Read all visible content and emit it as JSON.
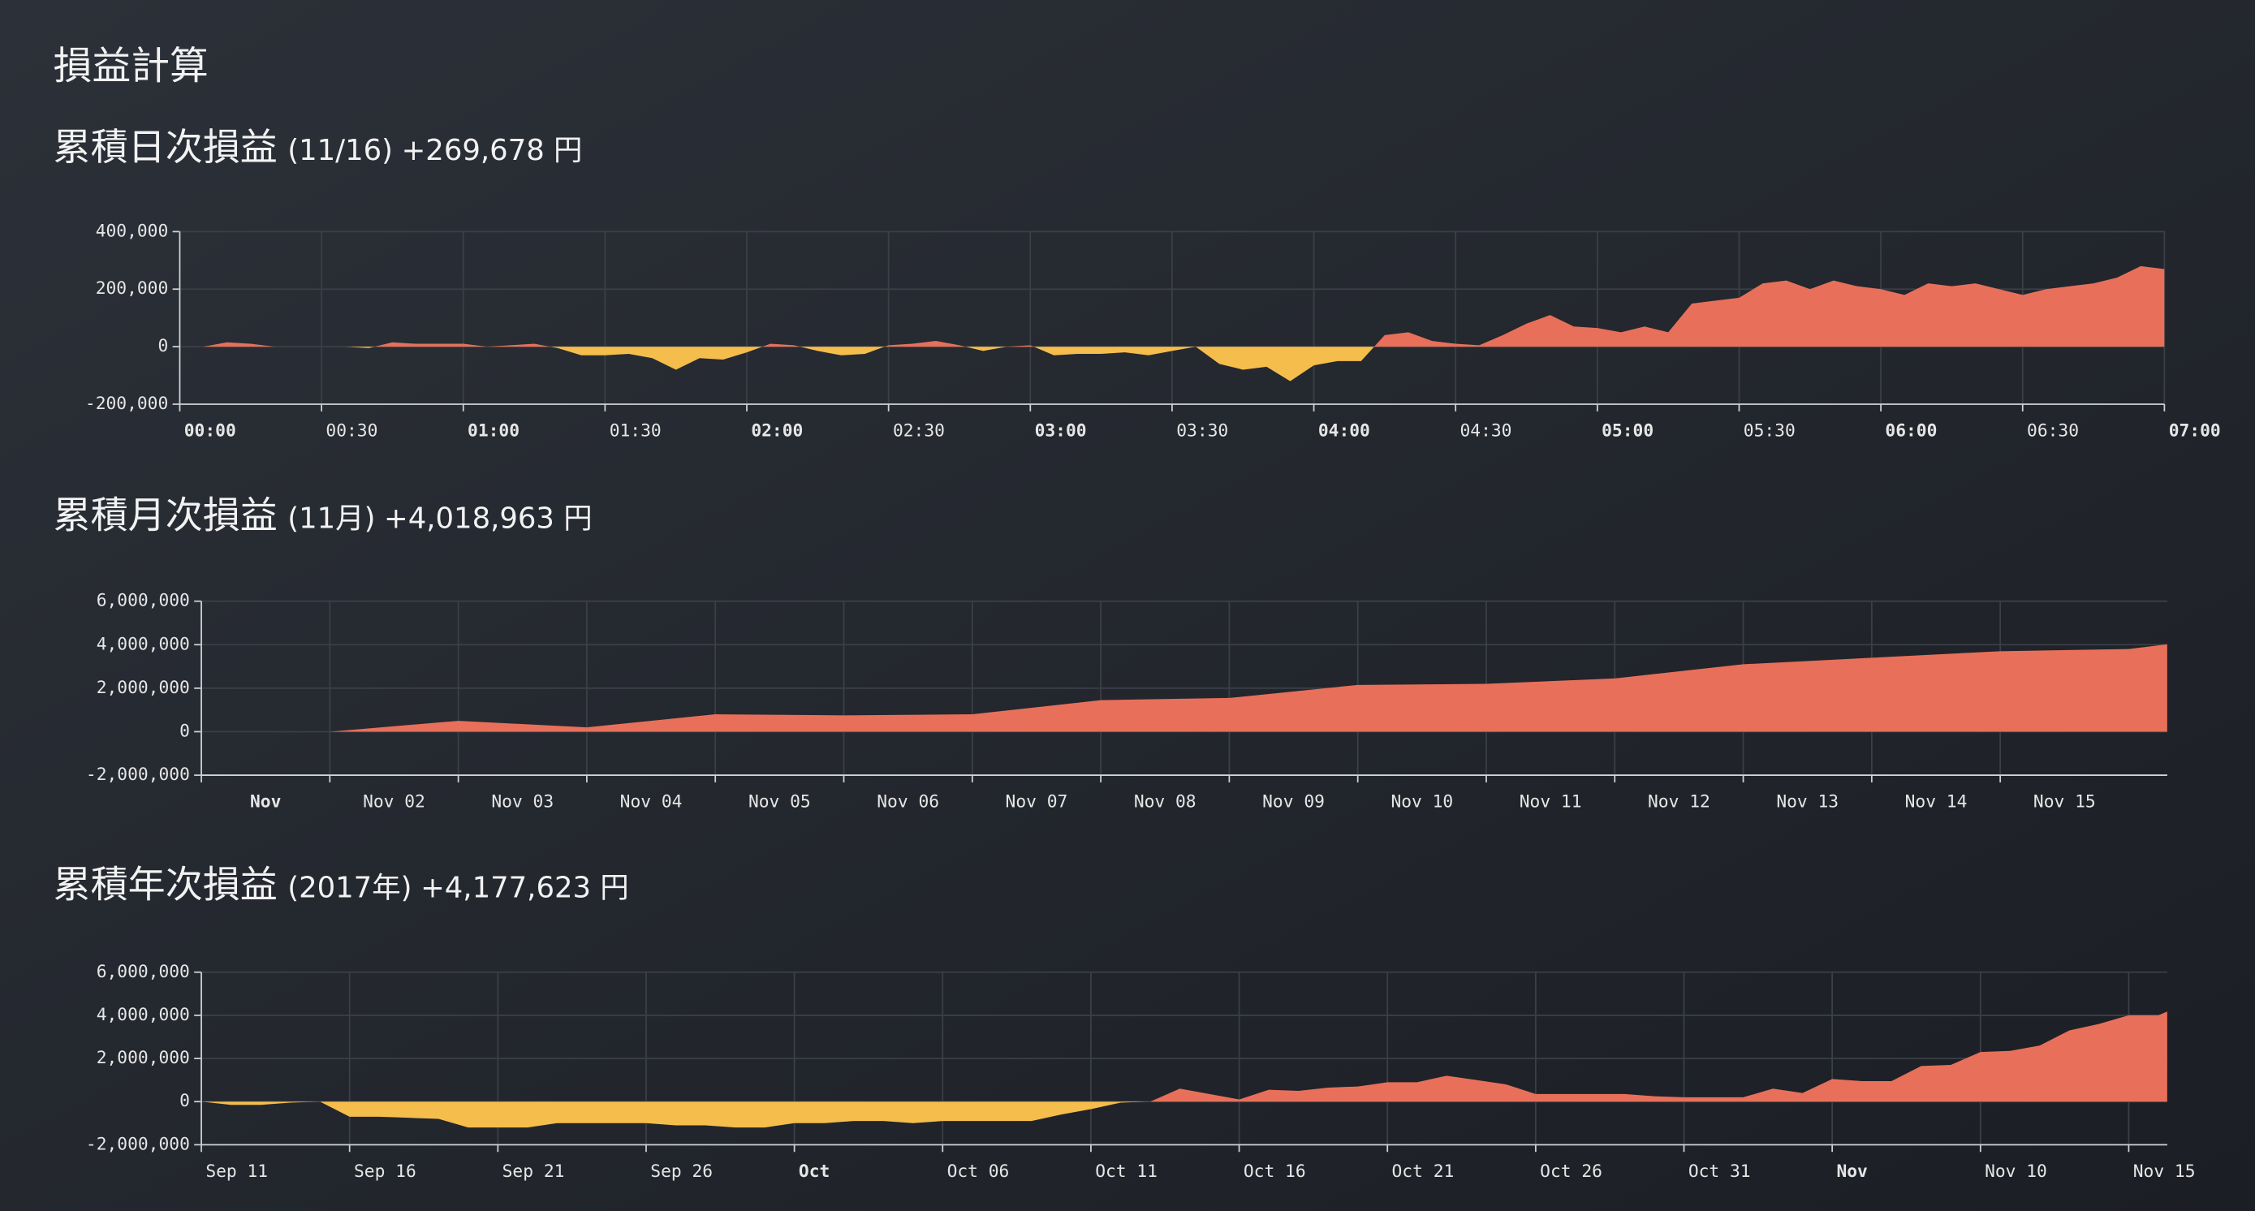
{
  "header": {
    "title": "損益計算"
  },
  "chart_data": [
    {
      "type": "area",
      "title": "累積日次損益",
      "period": "(11/16)",
      "total": "+269,678 円",
      "positive_color": "#e8705a",
      "negative_color": "#f5bd4b",
      "grid": true,
      "x": [
        "00:00",
        "00:05",
        "00:10",
        "00:15",
        "00:20",
        "00:25",
        "00:30",
        "00:35",
        "00:40",
        "00:45",
        "00:50",
        "00:55",
        "01:00",
        "01:05",
        "01:10",
        "01:15",
        "01:20",
        "01:25",
        "01:30",
        "01:35",
        "01:40",
        "01:45",
        "01:50",
        "01:55",
        "02:00",
        "02:05",
        "02:10",
        "02:15",
        "02:20",
        "02:25",
        "02:30",
        "02:35",
        "02:40",
        "02:45",
        "02:50",
        "02:55",
        "03:00",
        "03:05",
        "03:10",
        "03:15",
        "03:20",
        "03:25",
        "03:30",
        "03:35",
        "03:40",
        "03:45",
        "03:50",
        "03:55",
        "04:00",
        "04:05",
        "04:10",
        "04:15",
        "04:20",
        "04:25",
        "04:30",
        "04:35",
        "04:40",
        "04:45",
        "04:50",
        "04:55",
        "05:00",
        "05:05",
        "05:10",
        "05:15",
        "05:20",
        "05:25",
        "05:30",
        "05:35",
        "05:40",
        "05:45",
        "05:50",
        "05:55",
        "06:00",
        "06:05",
        "06:10",
        "06:15",
        "06:20",
        "06:25",
        "06:30",
        "06:35",
        "06:40",
        "06:45",
        "06:50",
        "06:55",
        "07:00"
      ],
      "values": [
        0,
        0,
        15000,
        10000,
        0,
        0,
        0,
        0,
        -5000,
        15000,
        10000,
        10000,
        10000,
        0,
        5000,
        10000,
        -5000,
        -30000,
        -30000,
        -25000,
        -40000,
        -80000,
        -40000,
        -45000,
        -20000,
        10000,
        5000,
        -15000,
        -30000,
        -25000,
        5000,
        10000,
        20000,
        5000,
        -15000,
        0,
        5000,
        -30000,
        -25000,
        -25000,
        -20000,
        -30000,
        -15000,
        0,
        -60000,
        -80000,
        -70000,
        -120000,
        -65000,
        -50000,
        -50000,
        40000,
        50000,
        20000,
        10000,
        5000,
        40000,
        80000,
        110000,
        70000,
        65000,
        50000,
        70000,
        50000,
        150000,
        160000,
        170000,
        220000,
        230000,
        200000,
        230000,
        210000,
        200000,
        180000,
        220000,
        210000,
        220000,
        200000,
        180000,
        200000,
        210000,
        220000,
        240000,
        280000,
        269678
      ],
      "xlim": [
        "00:00",
        "07:00"
      ],
      "xticks": [
        "00:00",
        "00:30",
        "01:00",
        "01:30",
        "02:00",
        "02:30",
        "03:00",
        "03:30",
        "04:00",
        "04:30",
        "05:00",
        "05:30",
        "06:00",
        "06:30",
        "07:00"
      ],
      "xtick_bold": [
        true,
        false,
        true,
        false,
        true,
        false,
        true,
        false,
        true,
        false,
        true,
        false,
        true,
        false,
        true
      ],
      "ylim": [
        -200000,
        400000
      ],
      "yticks": [
        {
          "value": -200000,
          "label": "-200,000"
        },
        0,
        {
          "value": 200000,
          "label": "200,000"
        },
        {
          "value": 400000,
          "label": "400,000"
        }
      ]
    },
    {
      "type": "area",
      "title": "累積月次損益",
      "period": "(11月)",
      "total": "+4,018,963 円",
      "positive_color": "#e8705a",
      "negative_color": "#f5bd4b",
      "grid": true,
      "x": [
        1,
        2,
        3,
        4,
        5,
        6,
        7,
        8,
        9,
        10,
        11,
        12,
        13,
        14,
        15,
        16,
        16.3
      ],
      "values": [
        0,
        0,
        500000,
        200000,
        800000,
        750000,
        800000,
        1450000,
        1550000,
        2150000,
        2200000,
        2450000,
        3100000,
        3400000,
        3700000,
        3800000,
        4018963
      ],
      "xlim": [
        1,
        16.3
      ],
      "xticks": [
        {
          "value": 1,
          "label": "Nov"
        },
        {
          "value": 2,
          "label": "Nov 02"
        },
        {
          "value": 3,
          "label": "Nov 03"
        },
        {
          "value": 4,
          "label": "Nov 04"
        },
        {
          "value": 5,
          "label": "Nov 05"
        },
        {
          "value": 6,
          "label": "Nov 06"
        },
        {
          "value": 7,
          "label": "Nov 07"
        },
        {
          "value": 8,
          "label": "Nov 08"
        },
        {
          "value": 9,
          "label": "Nov 09"
        },
        {
          "value": 10,
          "label": "Nov 10"
        },
        {
          "value": 11,
          "label": "Nov 11"
        },
        {
          "value": 12,
          "label": "Nov 12"
        },
        {
          "value": 13,
          "label": "Nov 13"
        },
        {
          "value": 14,
          "label": "Nov 14"
        },
        {
          "value": 15,
          "label": "Nov 15"
        }
      ],
      "xtick_bold": [
        true,
        false,
        false,
        false,
        false,
        false,
        false,
        false,
        false,
        false,
        false,
        false,
        false,
        false,
        false
      ],
      "ylim": [
        -2000000,
        6000000
      ],
      "yticks": [
        {
          "value": -2000000,
          "label": "-2,000,000"
        },
        0,
        {
          "value": 2000000,
          "label": "2,000,000"
        },
        {
          "value": 4000000,
          "label": "4,000,000"
        },
        {
          "value": 6000000,
          "label": "6,000,000"
        }
      ]
    },
    {
      "type": "area",
      "title": "累積年次損益",
      "period": "(2017年)",
      "total": "+4,177,623 円",
      "positive_color": "#e8705a",
      "negative_color": "#f5bd4b",
      "grid": true,
      "x": [
        0,
        1,
        2,
        3,
        4,
        5,
        6,
        7,
        8,
        9,
        10,
        11,
        12,
        13,
        14,
        15,
        16,
        17,
        18,
        19,
        20,
        21,
        22,
        23,
        24,
        25,
        26,
        27,
        28,
        29,
        30,
        31,
        32,
        33,
        34,
        35,
        36,
        37,
        38,
        39,
        40,
        41,
        42,
        43,
        44,
        45,
        46,
        47,
        48,
        49,
        50,
        51,
        52,
        53,
        54,
        55,
        56,
        57,
        58,
        59,
        60,
        61,
        62,
        63,
        64,
        65,
        66,
        66.3
      ],
      "values": [
        0,
        -150000,
        -150000,
        -50000,
        0,
        -700000,
        -700000,
        -750000,
        -800000,
        -1200000,
        -1200000,
        -1200000,
        -1000000,
        -1000000,
        -1000000,
        -1000000,
        -1100000,
        -1100000,
        -1200000,
        -1200000,
        -1000000,
        -1000000,
        -900000,
        -900000,
        -1000000,
        -900000,
        -900000,
        -900000,
        -900000,
        -600000,
        -350000,
        -50000,
        0,
        600000,
        350000,
        100000,
        550000,
        500000,
        650000,
        700000,
        900000,
        900000,
        1200000,
        1000000,
        800000,
        350000,
        350000,
        350000,
        350000,
        250000,
        200000,
        200000,
        200000,
        600000,
        400000,
        1050000,
        950000,
        950000,
        1650000,
        1700000,
        2300000,
        2350000,
        2600000,
        3300000,
        3600000,
        4000000,
        4000000,
        4177623
      ],
      "xlim": [
        0,
        66.3
      ],
      "xticks": [
        {
          "value": 0,
          "label": "Sep 11"
        },
        {
          "value": 5,
          "label": "Sep 16"
        },
        {
          "value": 10,
          "label": "Sep 21"
        },
        {
          "value": 15,
          "label": "Sep 26"
        },
        {
          "value": 20,
          "label": "Oct"
        },
        {
          "value": 25,
          "label": "Oct 06"
        },
        {
          "value": 30,
          "label": "Oct 11"
        },
        {
          "value": 35,
          "label": "Oct 16"
        },
        {
          "value": 40,
          "label": "Oct 21"
        },
        {
          "value": 45,
          "label": "Oct 26"
        },
        {
          "value": 50,
          "label": "Oct 31"
        },
        {
          "value": 55,
          "label": "Nov"
        },
        {
          "value": 60,
          "label": "Nov 10"
        },
        {
          "value": 65,
          "label": "Nov 15"
        }
      ],
      "xtick_bold": [
        false,
        false,
        false,
        false,
        true,
        false,
        false,
        false,
        false,
        false,
        false,
        true,
        false,
        false
      ],
      "ylim": [
        -2000000,
        6000000
      ],
      "yticks": [
        {
          "value": -2000000,
          "label": "-2,000,000"
        },
        0,
        {
          "value": 2000000,
          "label": "2,000,000"
        },
        {
          "value": 4000000,
          "label": "4,000,000"
        },
        {
          "value": 6000000,
          "label": "6,000,000"
        }
      ]
    }
  ]
}
